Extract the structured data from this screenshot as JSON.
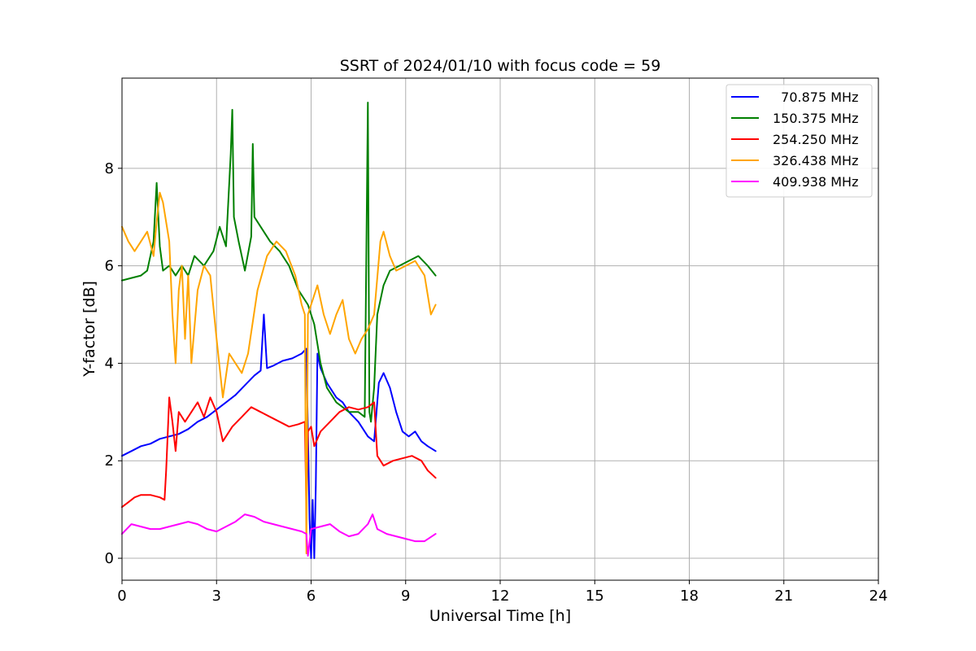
{
  "chart_data": {
    "type": "line",
    "title": "SSRT of 2024/01/10 with focus code = 59",
    "xlabel": "Universal Time [h]",
    "ylabel": "Y-factor [dB]",
    "xlim": [
      0,
      24
    ],
    "ylim": [
      -0.45,
      9.85
    ],
    "xticks": [
      0,
      3,
      6,
      9,
      12,
      15,
      18,
      21,
      24
    ],
    "yticks": [
      0,
      2,
      4,
      6,
      8
    ],
    "grid": true,
    "legend_position": "top-right",
    "series": [
      {
        "name": "70.875 MHz",
        "legend_label": "  70.875 MHz",
        "color": "#0000ff",
        "x": [
          0,
          0.3,
          0.6,
          0.9,
          1.2,
          1.5,
          1.8,
          2.1,
          2.4,
          2.7,
          3.0,
          3.3,
          3.6,
          3.9,
          4.2,
          4.4,
          4.5,
          4.6,
          4.8,
          5.1,
          5.4,
          5.7,
          5.85,
          5.95,
          6.0,
          6.05,
          6.1,
          6.15,
          6.2,
          6.3,
          6.5,
          6.8,
          7.0,
          7.2,
          7.5,
          7.8,
          8.0,
          8.15,
          8.3,
          8.5,
          8.7,
          8.9,
          9.1,
          9.3,
          9.5,
          9.7,
          9.95
        ],
        "y": [
          2.1,
          2.2,
          2.3,
          2.35,
          2.45,
          2.5,
          2.55,
          2.65,
          2.8,
          2.9,
          3.05,
          3.2,
          3.35,
          3.55,
          3.75,
          3.85,
          5.0,
          3.9,
          3.95,
          4.05,
          4.1,
          4.2,
          4.3,
          0.8,
          0.0,
          1.2,
          0.0,
          1.5,
          4.2,
          3.9,
          3.6,
          3.3,
          3.2,
          3.0,
          2.8,
          2.5,
          2.4,
          3.6,
          3.8,
          3.5,
          3.0,
          2.6,
          2.5,
          2.6,
          2.4,
          2.3,
          2.2
        ]
      },
      {
        "name": "150.375 MHz",
        "color": "#008000",
        "x": [
          0,
          0.3,
          0.6,
          0.8,
          1.0,
          1.1,
          1.2,
          1.3,
          1.5,
          1.7,
          1.9,
          2.1,
          2.3,
          2.6,
          2.9,
          3.1,
          3.3,
          3.45,
          3.5,
          3.55,
          3.7,
          3.9,
          4.1,
          4.15,
          4.2,
          4.4,
          4.7,
          5.0,
          5.3,
          5.6,
          5.9,
          6.1,
          6.3,
          6.5,
          6.8,
          7.0,
          7.2,
          7.5,
          7.7,
          7.8,
          7.85,
          7.9,
          8.0,
          8.1,
          8.3,
          8.5,
          8.8,
          9.1,
          9.4,
          9.7,
          9.95
        ],
        "y": [
          5.7,
          5.75,
          5.8,
          5.9,
          6.5,
          7.7,
          6.4,
          5.9,
          6.0,
          5.8,
          6.0,
          5.8,
          6.2,
          6.0,
          6.3,
          6.8,
          6.4,
          8.3,
          9.2,
          7.0,
          6.5,
          5.9,
          6.6,
          8.5,
          7.0,
          6.8,
          6.5,
          6.3,
          6.0,
          5.5,
          5.2,
          4.8,
          4.0,
          3.5,
          3.2,
          3.1,
          3.0,
          3.0,
          2.9,
          9.35,
          3.0,
          2.8,
          3.5,
          5.0,
          5.6,
          5.9,
          6.0,
          6.1,
          6.2,
          6.0,
          5.8
        ]
      },
      {
        "name": "254.250 MHz",
        "color": "#ff0000",
        "x": [
          0,
          0.2,
          0.4,
          0.6,
          0.9,
          1.2,
          1.35,
          1.4,
          1.5,
          1.6,
          1.7,
          1.8,
          2.0,
          2.2,
          2.4,
          2.6,
          2.8,
          3.0,
          3.2,
          3.5,
          3.8,
          4.1,
          4.4,
          4.7,
          5.0,
          5.3,
          5.6,
          5.8,
          5.85,
          5.9,
          6.0,
          6.1,
          6.3,
          6.6,
          6.9,
          7.2,
          7.5,
          7.8,
          8.0,
          8.1,
          8.3,
          8.6,
          8.9,
          9.2,
          9.5,
          9.7,
          9.95
        ],
        "y": [
          1.05,
          1.15,
          1.25,
          1.3,
          1.3,
          1.25,
          1.2,
          1.8,
          3.3,
          2.8,
          2.2,
          3.0,
          2.8,
          3.0,
          3.2,
          2.9,
          3.3,
          3.0,
          2.4,
          2.7,
          2.9,
          3.1,
          3.0,
          2.9,
          2.8,
          2.7,
          2.75,
          2.8,
          1.0,
          2.6,
          2.7,
          2.3,
          2.6,
          2.8,
          3.0,
          3.1,
          3.05,
          3.1,
          3.2,
          2.1,
          1.9,
          2.0,
          2.05,
          2.1,
          2.0,
          1.8,
          1.65
        ]
      },
      {
        "name": "326.438 MHz",
        "color": "#ffa500",
        "x": [
          0,
          0.2,
          0.4,
          0.6,
          0.8,
          1.0,
          1.1,
          1.2,
          1.3,
          1.5,
          1.6,
          1.7,
          1.8,
          1.9,
          2.0,
          2.1,
          2.2,
          2.4,
          2.6,
          2.8,
          3.0,
          3.2,
          3.4,
          3.6,
          3.8,
          4.0,
          4.3,
          4.6,
          4.9,
          5.2,
          5.5,
          5.7,
          5.8,
          5.85,
          5.9,
          6.0,
          6.2,
          6.4,
          6.6,
          6.8,
          7.0,
          7.2,
          7.4,
          7.6,
          7.8,
          8.0,
          8.2,
          8.3,
          8.5,
          8.7,
          9.0,
          9.3,
          9.6,
          9.8,
          9.95
        ],
        "y": [
          6.8,
          6.5,
          6.3,
          6.5,
          6.7,
          6.2,
          6.9,
          7.5,
          7.3,
          6.5,
          5.0,
          4.0,
          5.5,
          6.0,
          4.5,
          5.8,
          4.0,
          5.5,
          6.0,
          5.8,
          4.5,
          3.3,
          4.2,
          4.0,
          3.8,
          4.2,
          5.5,
          6.2,
          6.5,
          6.3,
          5.8,
          5.2,
          5.0,
          0.1,
          5.0,
          5.2,
          5.6,
          5.0,
          4.6,
          5.0,
          5.3,
          4.5,
          4.2,
          4.5,
          4.7,
          5.0,
          6.5,
          6.7,
          6.2,
          5.9,
          6.0,
          6.1,
          5.8,
          5.0,
          5.2
        ]
      },
      {
        "name": "409.938 MHz",
        "color": "#ff00ff",
        "x": [
          0,
          0.3,
          0.6,
          0.9,
          1.2,
          1.5,
          1.8,
          2.1,
          2.4,
          2.7,
          3.0,
          3.3,
          3.6,
          3.9,
          4.2,
          4.5,
          4.8,
          5.1,
          5.4,
          5.7,
          5.85,
          5.9,
          6.0,
          6.3,
          6.6,
          6.9,
          7.2,
          7.5,
          7.8,
          7.95,
          8.1,
          8.4,
          8.7,
          9.0,
          9.3,
          9.6,
          9.95
        ],
        "y": [
          0.5,
          0.7,
          0.65,
          0.6,
          0.6,
          0.65,
          0.7,
          0.75,
          0.7,
          0.6,
          0.55,
          0.65,
          0.75,
          0.9,
          0.85,
          0.75,
          0.7,
          0.65,
          0.6,
          0.55,
          0.5,
          0.05,
          0.6,
          0.65,
          0.7,
          0.55,
          0.45,
          0.5,
          0.7,
          0.9,
          0.6,
          0.5,
          0.45,
          0.4,
          0.35,
          0.35,
          0.5
        ]
      }
    ]
  }
}
